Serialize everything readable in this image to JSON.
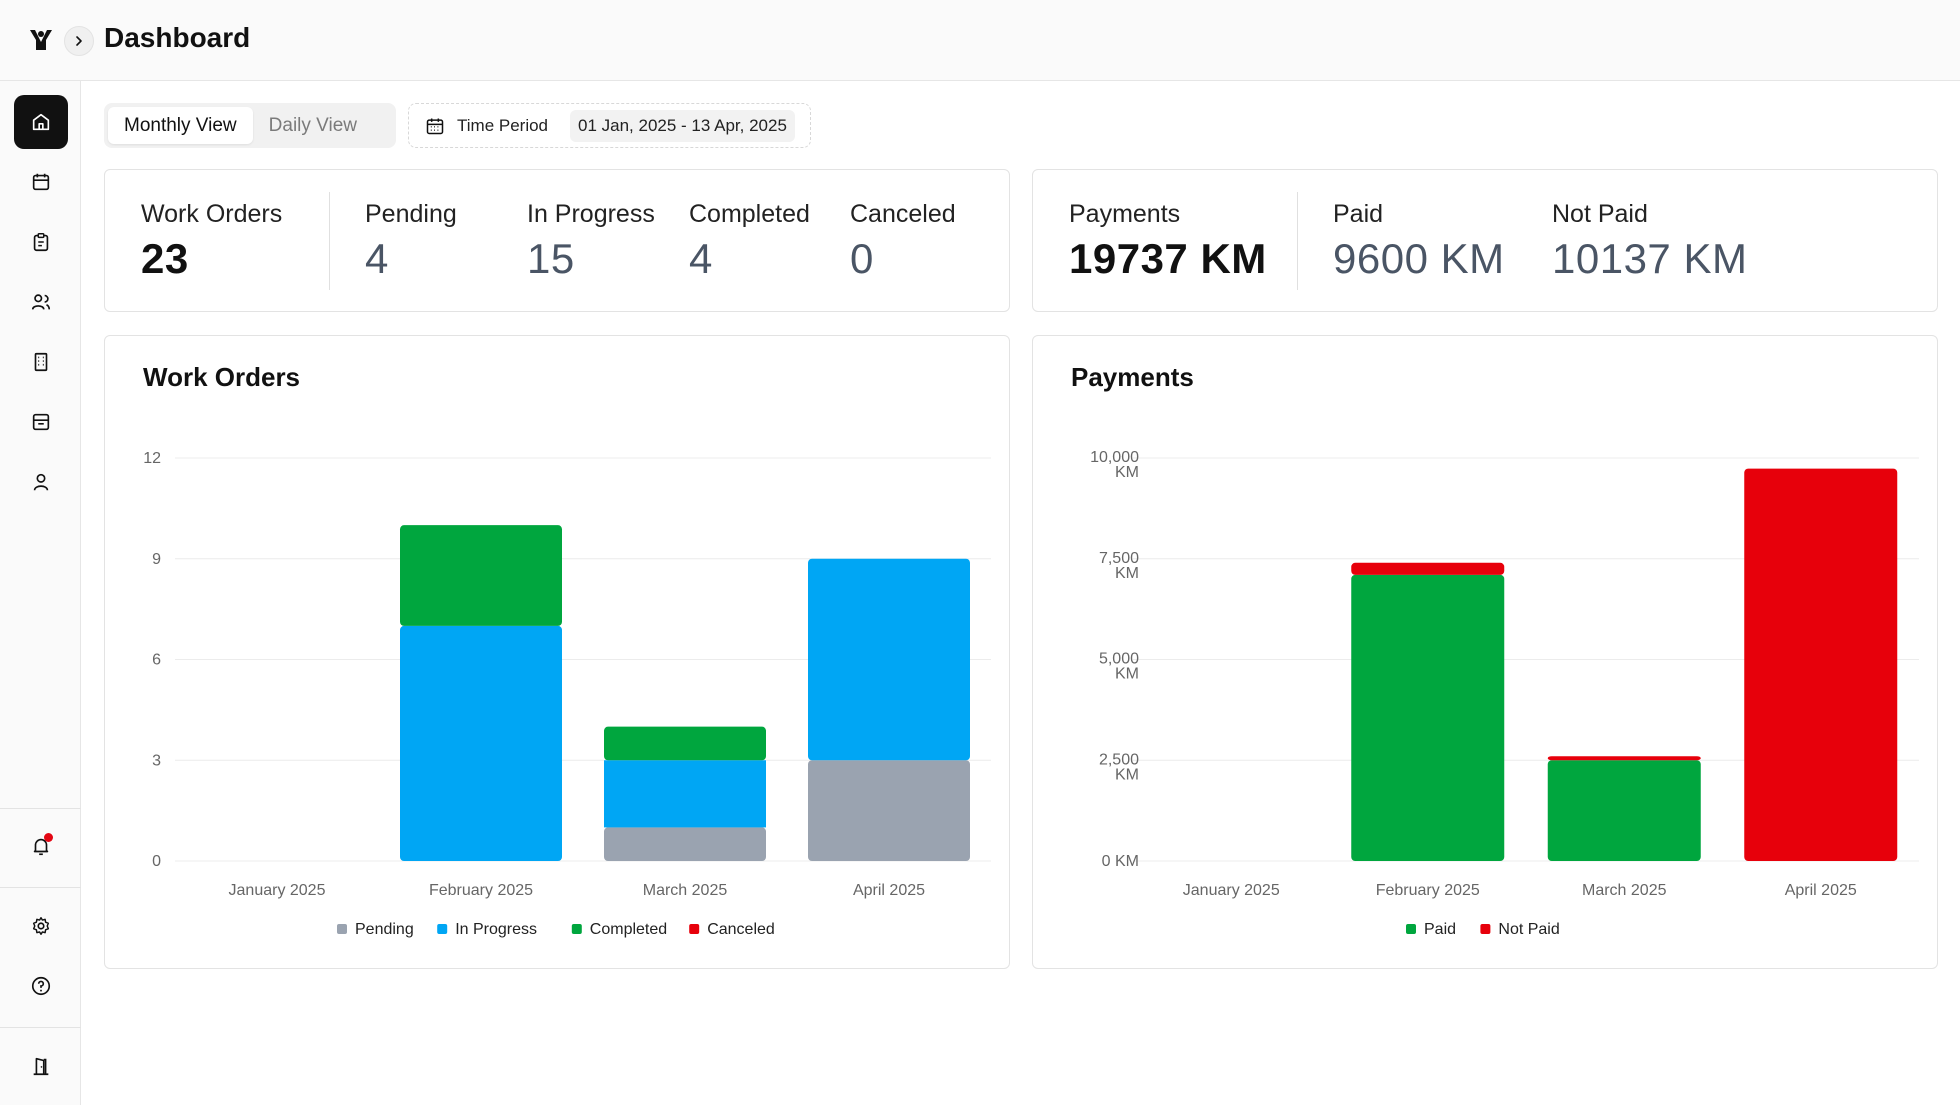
{
  "header": {
    "title": "Dashboard"
  },
  "sidebar": {
    "items": [
      {
        "icon": "home-icon",
        "active": true
      },
      {
        "icon": "calendar-icon"
      },
      {
        "icon": "clipboard-icon"
      },
      {
        "icon": "users-icon"
      },
      {
        "icon": "building-icon"
      },
      {
        "icon": "archive-icon"
      },
      {
        "icon": "user-icon"
      }
    ],
    "bottom": [
      {
        "icon": "bell-icon",
        "has_notification": true
      },
      {
        "icon": "settings-icon"
      },
      {
        "icon": "help-icon"
      },
      {
        "icon": "logout-door-icon"
      }
    ]
  },
  "controls": {
    "view_toggle": [
      "Monthly View",
      "Daily View"
    ],
    "active_view": "Monthly View",
    "time_period_label": "Time Period",
    "time_period_value": "01 Jan, 2025 - 13 Apr, 2025"
  },
  "work_orders_summary": {
    "title": "Work Orders",
    "total": "23",
    "stats": [
      {
        "label": "Pending",
        "value": "4"
      },
      {
        "label": "In Progress",
        "value": "15"
      },
      {
        "label": "Completed",
        "value": "4"
      },
      {
        "label": "Canceled",
        "value": "0"
      }
    ]
  },
  "payments_summary": {
    "title": "Payments",
    "total": "19737 KM",
    "stats": [
      {
        "label": "Paid",
        "value": "9600 KM"
      },
      {
        "label": "Not Paid",
        "value": "10137 KM"
      }
    ]
  },
  "colors": {
    "pending": "#9aa3b0",
    "in_progress": "#00a6f4",
    "completed": "#00a63e",
    "canceled": "#e7000b",
    "paid": "#00a63e",
    "not_paid": "#e7000b"
  },
  "chart_data": [
    {
      "type": "bar",
      "stacked": true,
      "title": "Work Orders",
      "categories": [
        "January 2025",
        "February 2025",
        "March 2025",
        "April 2025"
      ],
      "series": [
        {
          "name": "Pending",
          "values": [
            0,
            0,
            1,
            3
          ]
        },
        {
          "name": "In Progress",
          "values": [
            0,
            7,
            2,
            6
          ]
        },
        {
          "name": "Completed",
          "values": [
            0,
            3,
            1,
            0
          ]
        },
        {
          "name": "Canceled",
          "values": [
            0,
            0,
            0,
            0
          ]
        }
      ],
      "ylim": [
        0,
        12
      ],
      "yticks": [
        "0",
        "3",
        "6",
        "9",
        "12"
      ],
      "grid": true,
      "legend": "bottom"
    },
    {
      "type": "bar",
      "stacked": true,
      "title": "Payments",
      "categories": [
        "January 2025",
        "February 2025",
        "March 2025",
        "April 2025"
      ],
      "series": [
        {
          "name": "Paid",
          "values": [
            0,
            7100,
            2500,
            0
          ]
        },
        {
          "name": "Not Paid",
          "values": [
            0,
            300,
            100,
            9737
          ]
        }
      ],
      "ylim": [
        0,
        10000
      ],
      "yticks": [
        "0 KM",
        "2,500 KM",
        "5,000 KM",
        "7,500 KM",
        "10,000 KM"
      ],
      "grid": true,
      "legend": "bottom"
    }
  ]
}
